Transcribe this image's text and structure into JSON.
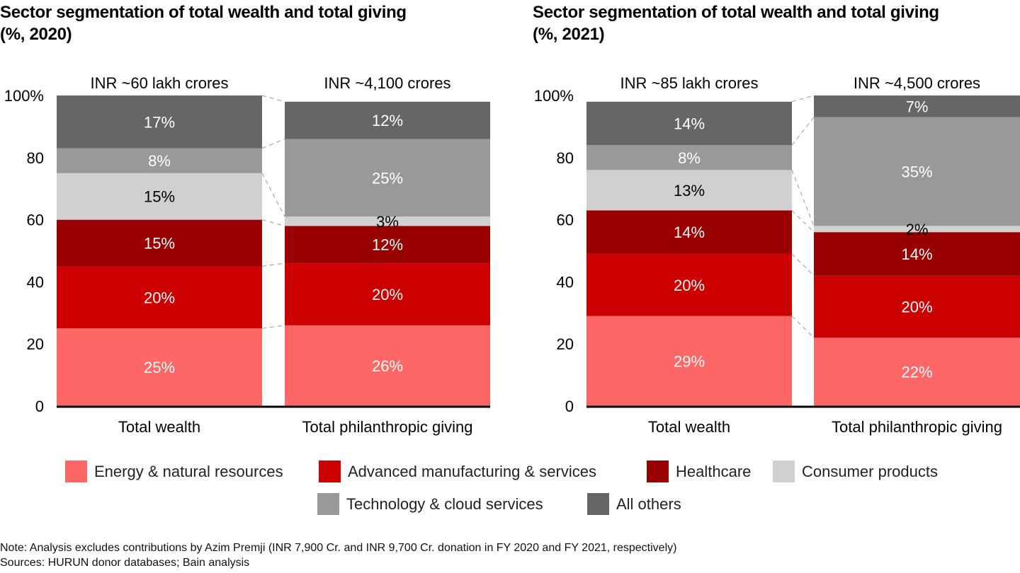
{
  "chart_data": [
    {
      "type": "bar",
      "stacked": true,
      "title": "Sector segmentation of total wealth and total giving (%, 2020)",
      "title_lines": [
        "Sector segmentation of total wealth and total giving",
        "(%, 2020)"
      ],
      "categories": [
        "Total wealth",
        "Total philanthropic giving"
      ],
      "totals": [
        "INR ~60 lakh crores",
        "INR ~4,100 crores"
      ],
      "ylim": [
        0,
        100
      ],
      "yticks": [
        "0",
        "20",
        "40",
        "60",
        "80",
        "100%"
      ],
      "ytick_values": [
        0,
        20,
        40,
        60,
        80,
        100
      ],
      "series": [
        {
          "name": "Energy & natural resources",
          "values": [
            25,
            26
          ],
          "labels": [
            "25%",
            "26%"
          ]
        },
        {
          "name": "Advanced manufacturing & services",
          "values": [
            20,
            20
          ],
          "labels": [
            "20%",
            "20%"
          ]
        },
        {
          "name": "Healthcare",
          "values": [
            15,
            12
          ],
          "labels": [
            "15%",
            "12%"
          ]
        },
        {
          "name": "Consumer products",
          "values": [
            15,
            3
          ],
          "labels": [
            "15%",
            "3%"
          ]
        },
        {
          "name": "Technology & cloud services",
          "values": [
            8,
            25
          ],
          "labels": [
            "8%",
            "25%"
          ]
        },
        {
          "name": "All others",
          "values": [
            17,
            12
          ],
          "labels": [
            "17%",
            "12%"
          ]
        }
      ],
      "grid": false,
      "legend": "bottom"
    },
    {
      "type": "bar",
      "stacked": true,
      "title": "Sector segmentation of total wealth and total giving (%, 2021)",
      "title_lines": [
        "Sector segmentation of total wealth and total giving",
        "(%, 2021)"
      ],
      "categories": [
        "Total wealth",
        "Total philanthropic giving"
      ],
      "totals": [
        "INR ~85 lakh crores",
        "INR ~4,500 crores"
      ],
      "ylim": [
        0,
        100
      ],
      "yticks": [
        "0",
        "20",
        "40",
        "60",
        "80",
        "100%"
      ],
      "ytick_values": [
        0,
        20,
        40,
        60,
        80,
        100
      ],
      "series": [
        {
          "name": "Energy & natural resources",
          "values": [
            29,
            22
          ],
          "labels": [
            "29%",
            "22%"
          ]
        },
        {
          "name": "Advanced manufacturing & services",
          "values": [
            20,
            20
          ],
          "labels": [
            "20%",
            "20%"
          ]
        },
        {
          "name": "Healthcare",
          "values": [
            14,
            14
          ],
          "labels": [
            "14%",
            "14%"
          ]
        },
        {
          "name": "Consumer products",
          "values": [
            13,
            2
          ],
          "labels": [
            "13%",
            "2%"
          ]
        },
        {
          "name": "Technology & cloud services",
          "values": [
            8,
            35
          ],
          "labels": [
            "8%",
            "35%"
          ]
        },
        {
          "name": "All others",
          "values": [
            14,
            7
          ],
          "labels": [
            "14%",
            "7%"
          ]
        }
      ],
      "grid": false,
      "legend": "bottom"
    }
  ],
  "legend": [
    {
      "name": "Energy & natural resources",
      "color": "#ff6666"
    },
    {
      "name": "Advanced manufacturing & services",
      "color": "#cc0000"
    },
    {
      "name": "Healthcare",
      "color": "#990000"
    },
    {
      "name": "Consumer products",
      "color": "#d0d0d0"
    },
    {
      "name": "Technology & cloud services",
      "color": "#999999"
    },
    {
      "name": "All others",
      "color": "#666666"
    }
  ],
  "label_colors": [
    "#ffffff",
    "#ffffff",
    "#ffffff",
    "#000000",
    "#ffffff",
    "#ffffff"
  ],
  "notes": {
    "note": "Note: Analysis excludes contributions by Azim Premji (INR 7,900 Cr. and INR 9,700 Cr. donation in FY 2020 and FY 2021, respectively)",
    "sources": "Sources: HURUN donor databases; Bain analysis"
  }
}
